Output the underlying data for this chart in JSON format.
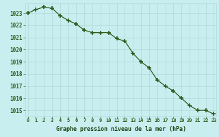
{
  "hours": [
    0,
    1,
    2,
    3,
    4,
    5,
    6,
    7,
    8,
    9,
    10,
    11,
    12,
    13,
    14,
    15,
    16,
    17,
    18,
    19,
    20,
    21,
    22,
    23
  ],
  "pressure": [
    1023.0,
    1023.3,
    1023.5,
    1023.4,
    1022.8,
    1022.4,
    1022.1,
    1021.6,
    1021.4,
    1021.4,
    1021.4,
    1020.9,
    1020.7,
    1019.7,
    1019.0,
    1018.5,
    1017.5,
    1017.0,
    1016.6,
    1016.0,
    1015.4,
    1015.0,
    1015.0,
    1014.7
  ],
  "line_color": "#2d5a1b",
  "marker_color": "#2d5a1b",
  "bg_color": "#c8eef0",
  "grid_color": "#b0d8d8",
  "xlabel": "Graphe pression niveau de la mer (hPa)",
  "xlabel_color": "#1a4010",
  "tick_color": "#2d5a1b",
  "ylim_min": 1014.5,
  "ylim_max": 1023.8,
  "yticks": [
    1015,
    1016,
    1017,
    1018,
    1019,
    1020,
    1021,
    1022,
    1023
  ],
  "xticks": [
    0,
    1,
    2,
    3,
    4,
    5,
    6,
    7,
    8,
    9,
    10,
    11,
    12,
    13,
    14,
    15,
    16,
    17,
    18,
    19,
    20,
    21,
    22,
    23
  ]
}
